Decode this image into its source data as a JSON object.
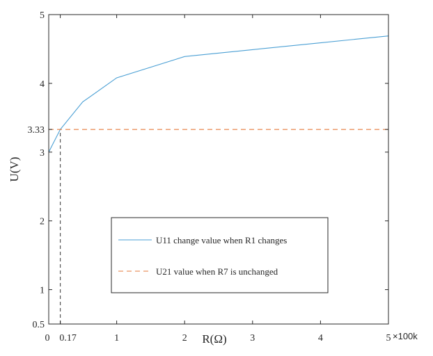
{
  "chart_data": {
    "type": "line",
    "xlabel": "R(Ω)",
    "ylabel": "U(V)",
    "x_exponent_label": "×100k",
    "xlim": [
      0,
      5
    ],
    "ylim": [
      0.5,
      5
    ],
    "x_ticks": [
      0,
      0.17,
      1,
      2,
      3,
      4,
      5
    ],
    "x_tick_labels": [
      "0",
      "0.17",
      "1",
      "2",
      "3",
      "4",
      "5"
    ],
    "y_ticks": [
      0.5,
      1,
      2,
      3,
      3.33,
      4,
      5
    ],
    "y_tick_labels": [
      "0.5",
      "1",
      "2",
      "3",
      "3.33",
      "4",
      "5"
    ],
    "grid": false,
    "legend_position": "center",
    "series": [
      {
        "name": "U11 change value when R1 changes",
        "style": "solid",
        "color": "#4a9fd4",
        "x": [
          0,
          0.17,
          0.5,
          1,
          2,
          3,
          4,
          5
        ],
        "y": [
          3.0,
          3.33,
          3.73,
          4.08,
          4.39,
          4.49,
          4.59,
          4.69
        ]
      },
      {
        "name": "U21 value when R7 is unchanged",
        "style": "dashed",
        "color": "#e57a3a",
        "x": [
          0,
          5
        ],
        "y": [
          3.33,
          3.33
        ]
      }
    ],
    "annotations": [
      {
        "type": "vertical-dashed-line",
        "x": 0.17,
        "y_from": 0.5,
        "y_to": 3.33,
        "color": "#555555"
      }
    ]
  }
}
